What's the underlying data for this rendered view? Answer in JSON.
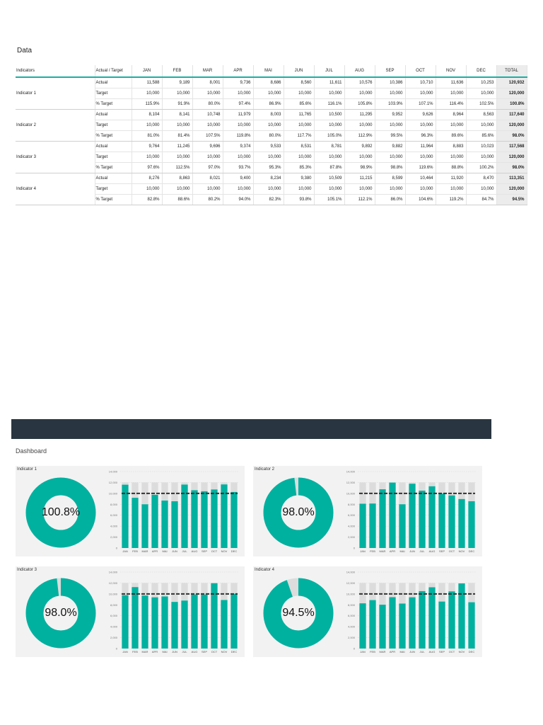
{
  "data_section_title": "Data",
  "dashboard_title": "Dashboard",
  "table": {
    "headers": [
      "Indicators",
      "Actual / Target",
      "JAN",
      "FEB",
      "MAR",
      "APR",
      "MAI",
      "JUN",
      "JUL",
      "AUG",
      "SEP",
      "OCT",
      "NOV",
      "DEC",
      "TOTAL"
    ],
    "groups": [
      {
        "name": "Indicator 1",
        "rows": [
          {
            "type": "Actual",
            "values": [
              "11,588",
              "9,189",
              "8,001",
              "9,736",
              "8,686",
              "8,560",
              "11,611",
              "10,576",
              "10,386",
              "10,710",
              "11,636",
              "10,253"
            ],
            "total": "120,932"
          },
          {
            "type": "Target",
            "values": [
              "10,000",
              "10,000",
              "10,000",
              "10,000",
              "10,000",
              "10,000",
              "10,000",
              "10,000",
              "10,000",
              "10,000",
              "10,000",
              "10,000"
            ],
            "total": "120,000"
          },
          {
            "type": "% Target",
            "values": [
              "115.9%",
              "91.9%",
              "80.0%",
              "97.4%",
              "86.9%",
              "85.6%",
              "116.1%",
              "105.8%",
              "103.9%",
              "107.1%",
              "116.4%",
              "102.5%"
            ],
            "total": "100.8%"
          }
        ]
      },
      {
        "name": "Indicator 2",
        "rows": [
          {
            "type": "Actual",
            "values": [
              "8,104",
              "8,141",
              "10,748",
              "11,979",
              "8,003",
              "11,765",
              "10,500",
              "11,295",
              "9,952",
              "9,626",
              "8,964",
              "8,563"
            ],
            "total": "117,640"
          },
          {
            "type": "Target",
            "values": [
              "10,000",
              "10,000",
              "10,000",
              "10,000",
              "10,000",
              "10,000",
              "10,000",
              "10,000",
              "10,000",
              "10,000",
              "10,000",
              "10,000"
            ],
            "total": "120,000"
          },
          {
            "type": "% Target",
            "values": [
              "81.0%",
              "81.4%",
              "107.5%",
              "119.8%",
              "80.0%",
              "117.7%",
              "105.0%",
              "112.9%",
              "99.5%",
              "96.3%",
              "89.6%",
              "85.6%"
            ],
            "total": "98.0%"
          }
        ]
      },
      {
        "name": "Indicator 3",
        "rows": [
          {
            "type": "Actual",
            "values": [
              "9,764",
              "11,245",
              "9,696",
              "9,374",
              "9,533",
              "8,531",
              "8,781",
              "9,892",
              "9,882",
              "11,964",
              "8,883",
              "10,023"
            ],
            "total": "117,568"
          },
          {
            "type": "Target",
            "values": [
              "10,000",
              "10,000",
              "10,000",
              "10,000",
              "10,000",
              "10,000",
              "10,000",
              "10,000",
              "10,000",
              "10,000",
              "10,000",
              "10,000"
            ],
            "total": "120,000"
          },
          {
            "type": "% Target",
            "values": [
              "97.6%",
              "112.5%",
              "97.0%",
              "93.7%",
              "95.3%",
              "85.3%",
              "87.8%",
              "98.9%",
              "98.8%",
              "119.6%",
              "88.8%",
              "100.2%"
            ],
            "total": "98.0%"
          }
        ]
      },
      {
        "name": "Indicator 4",
        "rows": [
          {
            "type": "Actual",
            "values": [
              "8,276",
              "8,863",
              "8,021",
              "9,400",
              "8,234",
              "9,380",
              "10,509",
              "11,215",
              "8,599",
              "10,464",
              "11,920",
              "8,470"
            ],
            "total": "113,351"
          },
          {
            "type": "Target",
            "values": [
              "10,000",
              "10,000",
              "10,000",
              "10,000",
              "10,000",
              "10,000",
              "10,000",
              "10,000",
              "10,000",
              "10,000",
              "10,000",
              "10,000"
            ],
            "total": "120,000"
          },
          {
            "type": "% Target",
            "values": [
              "82.8%",
              "88.6%",
              "80.2%",
              "94.0%",
              "82.3%",
              "93.8%",
              "105.1%",
              "112.1%",
              "86.0%",
              "104.6%",
              "119.2%",
              "84.7%"
            ],
            "total": "94.5%"
          }
        ]
      }
    ]
  },
  "colors": {
    "teal": "#00b1a0",
    "light_gray": "#dcdcdc",
    "target_line": "#333333",
    "dark_band": "#293540"
  },
  "chart_data": [
    {
      "type": "bar",
      "title": "Indicator 1",
      "donut_label": "100.8%",
      "donut_fraction": 1.0,
      "categories": [
        "JAN",
        "FEB",
        "MAR",
        "APR",
        "MAI",
        "JUN",
        "JUL",
        "AUG",
        "SEP",
        "OCT",
        "NOV",
        "DEC"
      ],
      "values": [
        11588,
        9189,
        8001,
        9736,
        8686,
        8560,
        11611,
        10576,
        10386,
        10710,
        11636,
        10253
      ],
      "target": 10000,
      "background_max": 12000,
      "ylim": [
        0,
        14000
      ],
      "yticks": [
        "0",
        "2,000",
        "4,000",
        "6,000",
        "8,000",
        "10,000",
        "12,000",
        "14,000"
      ]
    },
    {
      "type": "bar",
      "title": "Indicator 2",
      "donut_label": "98.0%",
      "donut_fraction": 0.98,
      "categories": [
        "JAN",
        "FEB",
        "MAR",
        "APR",
        "MAI",
        "JUN",
        "JUL",
        "AUG",
        "SEP",
        "OCT",
        "NOV",
        "DEC"
      ],
      "values": [
        8104,
        8141,
        10748,
        11979,
        8003,
        11765,
        10500,
        11295,
        9952,
        9626,
        8964,
        8563
      ],
      "target": 10000,
      "background_max": 12000,
      "ylim": [
        0,
        14000
      ],
      "yticks": [
        "0",
        "2,000",
        "4,000",
        "6,000",
        "8,000",
        "10,000",
        "12,000",
        "14,000"
      ]
    },
    {
      "type": "bar",
      "title": "Indicator 3",
      "donut_label": "98.0%",
      "donut_fraction": 0.98,
      "categories": [
        "JAN",
        "FEB",
        "MAR",
        "APR",
        "MAI",
        "JUN",
        "JUL",
        "AUG",
        "SEP",
        "OCT",
        "NOV",
        "DEC"
      ],
      "values": [
        9764,
        11245,
        9696,
        9374,
        9533,
        8531,
        8781,
        9892,
        9882,
        11964,
        8883,
        10023
      ],
      "target": 10000,
      "background_max": 12000,
      "ylim": [
        0,
        14000
      ],
      "yticks": [
        "0",
        "2,000",
        "4,000",
        "6,000",
        "8,000",
        "10,000",
        "12,000",
        "14,000"
      ]
    },
    {
      "type": "bar",
      "title": "Indicator 4",
      "donut_label": "94.5%",
      "donut_fraction": 0.945,
      "categories": [
        "JAN",
        "FEB",
        "MAR",
        "APR",
        "MAI",
        "JUN",
        "JUL",
        "AUG",
        "SEP",
        "OCT",
        "NOV",
        "DEC"
      ],
      "values": [
        8276,
        8863,
        8021,
        9400,
        8234,
        9380,
        10509,
        11215,
        8599,
        10464,
        11920,
        8470
      ],
      "target": 10000,
      "background_max": 12000,
      "ylim": [
        0,
        14000
      ],
      "yticks": [
        "0",
        "2,000",
        "4,000",
        "6,000",
        "8,000",
        "10,000",
        "12,000",
        "14,000"
      ]
    }
  ]
}
